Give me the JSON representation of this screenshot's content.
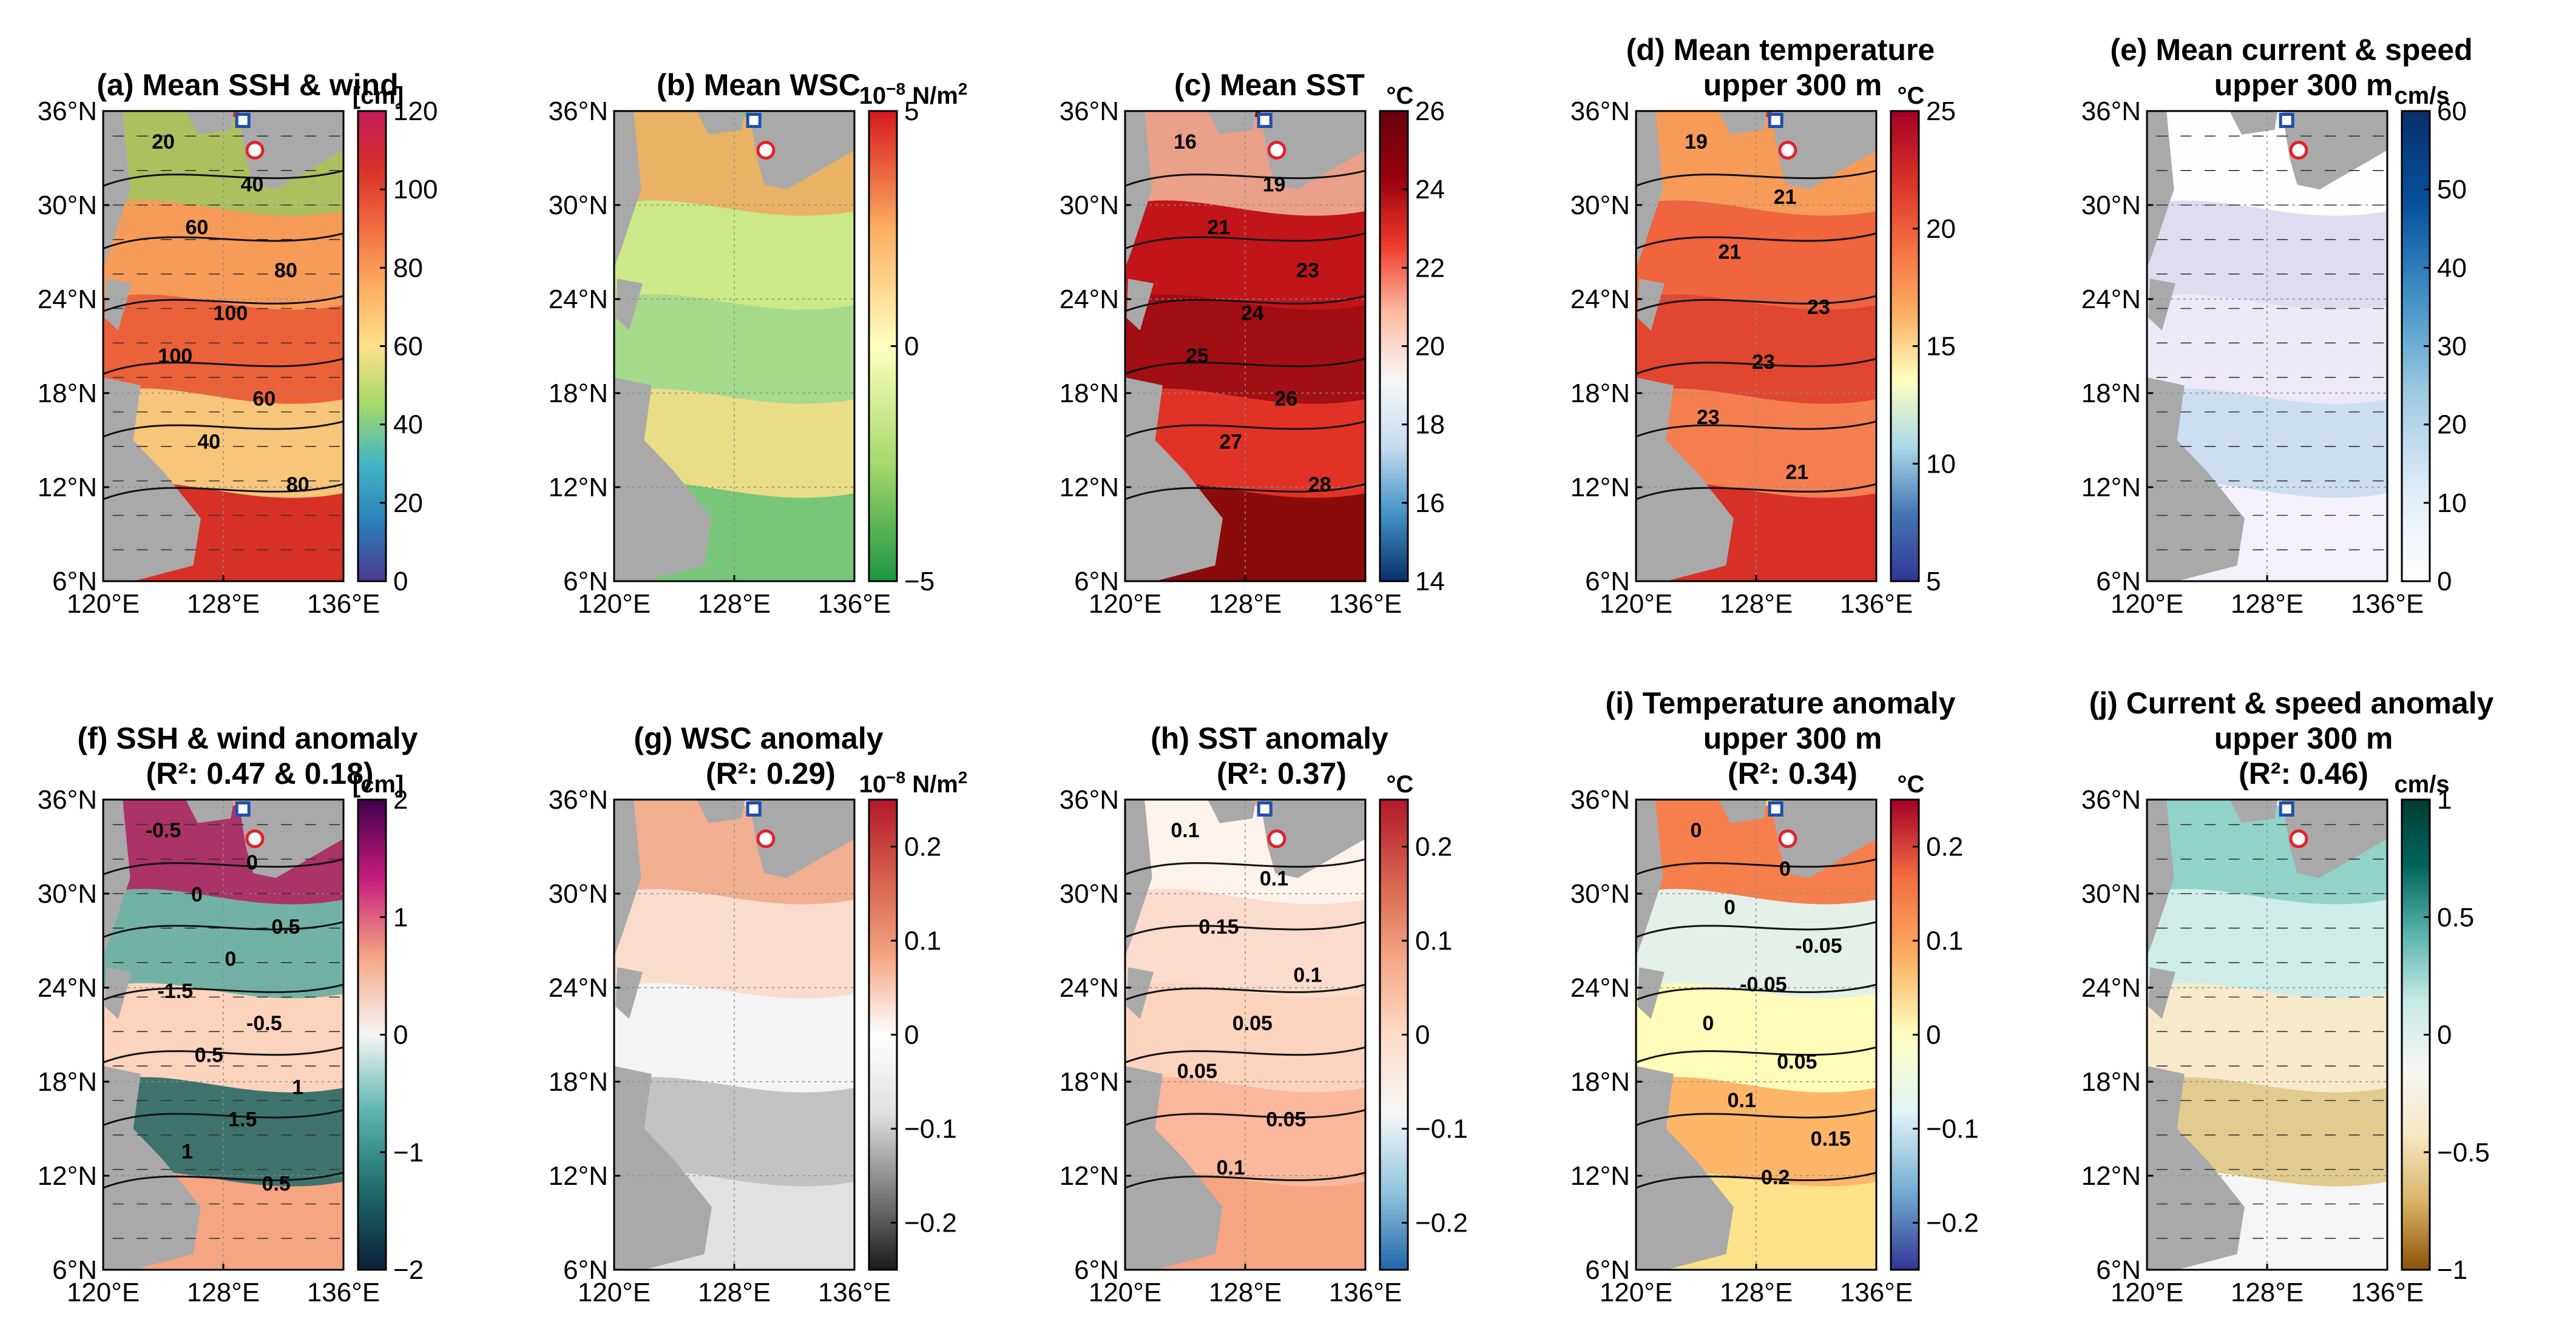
{
  "chart_data": {
    "type": "heatmap",
    "map_extent": {
      "lon": [
        120,
        136
      ],
      "lat": [
        6,
        36
      ]
    },
    "x_ticks": [
      "120°E",
      "128°E",
      "136°E"
    ],
    "y_ticks": [
      "36°N",
      "30°N",
      "24°N",
      "18°N",
      "12°N",
      "6°N"
    ],
    "panels": [
      {
        "id": "a",
        "title_lines": [
          "(a) Mean SSH & wind"
        ],
        "unit": "[cm]",
        "colorbar": {
          "min": 0,
          "max": 120,
          "ticks": [
            "120",
            "100",
            "80",
            "60",
            "40",
            "20",
            "0"
          ],
          "colors": [
            "#4b3a8e",
            "#2c7fb8",
            "#41b6c4",
            "#a6d96a",
            "#fee08b",
            "#fdae61",
            "#f46d43",
            "#d73027",
            "#c51b5a"
          ]
        },
        "map_colors": [
          "#d73027",
          "#ee6a3d",
          "#fdae61",
          "#fee08b",
          "#a6d96a"
        ],
        "contour_labels": [
          "20",
          "40",
          "60",
          "80",
          "100",
          "100",
          "60",
          "40",
          "80"
        ]
      },
      {
        "id": "b",
        "title_lines": [
          "(b) Mean WSC"
        ],
        "unit": "10^-8 N/m^2",
        "colorbar": {
          "min": -5,
          "max": 5,
          "ticks": [
            "5",
            "0",
            "−5"
          ],
          "colors": [
            "#1a9641",
            "#a6d96a",
            "#ffffbf",
            "#fdae61",
            "#d7191c"
          ]
        },
        "map_colors": [
          "#78c679",
          "#addd8e",
          "#d9ef8b",
          "#fee08b",
          "#fdae61"
        ],
        "contour_labels": []
      },
      {
        "id": "c",
        "title_lines": [
          "(c) Mean SST"
        ],
        "unit": "°C",
        "colorbar": {
          "min": 14,
          "max": 26,
          "ticks": [
            "26",
            "24",
            "22",
            "20",
            "18",
            "16",
            "14"
          ],
          "colors": [
            "#08306b",
            "#4292c6",
            "#c6dbef",
            "#f7f7f7",
            "#fcbba1",
            "#ef3b2c",
            "#99000d",
            "#67000d"
          ]
        },
        "map_colors": [
          "#8b0a0a",
          "#a50f15",
          "#cb181d",
          "#ef3b2c",
          "#fcbba1"
        ],
        "contour_labels": [
          "16",
          "19",
          "21",
          "23",
          "24",
          "25",
          "26",
          "27",
          "28"
        ]
      },
      {
        "id": "d",
        "title_lines": [
          "(d) Mean temperature",
          "upper 300 m"
        ],
        "unit": "°C",
        "colorbar": {
          "min": 5,
          "max": 25,
          "ticks": [
            "25",
            "20",
            "15",
            "10",
            "5"
          ],
          "colors": [
            "#313695",
            "#4575b4",
            "#abd9e9",
            "#ffffbf",
            "#fdae61",
            "#f46d43",
            "#d73027",
            "#a50026"
          ]
        },
        "map_colors": [
          "#d73027",
          "#e34a33",
          "#f46d43",
          "#fc8d59",
          "#fdae61"
        ],
        "contour_labels": [
          "19",
          "21",
          "21",
          "23",
          "23",
          "23",
          "21"
        ]
      },
      {
        "id": "e",
        "title_lines": [
          "(e) Mean current & speed",
          "upper 300 m"
        ],
        "unit": "cm/s",
        "colorbar": {
          "min": 0,
          "max": 60,
          "ticks": [
            "60",
            "50",
            "40",
            "30",
            "20",
            "10",
            "0"
          ],
          "colors": [
            "#ffffff",
            "#deebf7",
            "#9ecae1",
            "#4292c6",
            "#08519c",
            "#08306b"
          ]
        },
        "map_colors": [
          "#f4f1fa",
          "#ece7f4",
          "#dcd8ec",
          "#c6dbef",
          "#ffffff"
        ],
        "contour_labels": []
      },
      {
        "id": "f",
        "title_lines": [
          "(f) SSH & wind anomaly",
          "(R²: 0.47 & 0.18)"
        ],
        "unit": "[cm]",
        "colorbar": {
          "min": -2,
          "max": 2,
          "ticks": [
            "2",
            "1",
            "0",
            "−1",
            "−2"
          ],
          "colors": [
            "#0b1f3a",
            "#1d6a6a",
            "#5ab4ac",
            "#f5f5f5",
            "#f4a582",
            "#c51b7d",
            "#40004b"
          ]
        },
        "map_colors": [
          "#f4a582",
          "#fddbc7",
          "#5ab4ac",
          "#1d6a6a",
          "#9e1f63"
        ],
        "contour_labels": [
          "-0.5",
          "0",
          "0",
          "0.5",
          "0",
          "-1.5",
          "-0.5",
          "0.5",
          "1",
          "1.5",
          "1",
          "0.5"
        ]
      },
      {
        "id": "g",
        "title_lines": [
          "(g) WSC anomaly",
          "(R²: 0.29)"
        ],
        "unit": "10^-8 N/m^2",
        "colorbar": {
          "min": -0.25,
          "max": 0.25,
          "ticks": [
            "0.2",
            "0.1",
            "0",
            "−0.1",
            "−0.2"
          ],
          "colors": [
            "#1a1a1a",
            "#7f7f7f",
            "#e0e0e0",
            "#ffffff",
            "#f4a582",
            "#d6604d",
            "#b2182b"
          ]
        },
        "map_colors": [
          "#e0e0e0",
          "#f7f7f7",
          "#fddbc7",
          "#bdbdbd",
          "#f4a582"
        ],
        "contour_labels": []
      },
      {
        "id": "h",
        "title_lines": [
          "(h) SST anomaly",
          "(R²: 0.37)"
        ],
        "unit": "°C",
        "colorbar": {
          "min": -0.25,
          "max": 0.25,
          "ticks": [
            "0.2",
            "0.1",
            "0",
            "−0.1",
            "−0.2"
          ],
          "colors": [
            "#2166ac",
            "#92c5de",
            "#f7f7f7",
            "#fddbc7",
            "#f4a582",
            "#d6604d",
            "#b2182b"
          ]
        },
        "map_colors": [
          "#f4a582",
          "#fddbc7",
          "#fbe4d8",
          "#fcbba1",
          "#ffffff"
        ],
        "contour_labels": [
          "0.1",
          "0.1",
          "0.15",
          "0.1",
          "0.05",
          "0.05",
          "0.05",
          "0.1"
        ]
      },
      {
        "id": "i",
        "title_lines": [
          "(i) Temperature anomaly",
          "upper 300 m",
          "(R²: 0.34)"
        ],
        "unit": "°C",
        "colorbar": {
          "min": -0.25,
          "max": 0.25,
          "ticks": [
            "0.2",
            "0.1",
            "0",
            "−0.1",
            "−0.2"
          ],
          "colors": [
            "#313695",
            "#74add1",
            "#e0f3f8",
            "#ffffbf",
            "#fdae61",
            "#f46d43",
            "#a50026"
          ]
        },
        "map_colors": [
          "#fee08b",
          "#ffffbf",
          "#e0f3f8",
          "#fdae61",
          "#f46d43"
        ],
        "contour_labels": [
          "0",
          "0",
          "0",
          "-0.05",
          "-0.05",
          "0",
          "0.05",
          "0.1",
          "0.15",
          "0.2"
        ]
      },
      {
        "id": "j",
        "title_lines": [
          "(j) Current & speed anomaly",
          "upper 300 m",
          "(R²: 0.46)"
        ],
        "unit": "cm/s",
        "colorbar": {
          "min": -1,
          "max": 1,
          "ticks": [
            "1",
            "0.5",
            "0",
            "−0.5",
            "−1"
          ],
          "colors": [
            "#8c510a",
            "#d8b365",
            "#f6e8c3",
            "#f5f5f5",
            "#c7eae5",
            "#5ab4ac",
            "#01665e",
            "#003c30"
          ]
        },
        "map_colors": [
          "#f5f5f5",
          "#f6e8c3",
          "#c7eae5",
          "#dfc27d",
          "#80cdc1"
        ],
        "contour_labels": []
      }
    ]
  }
}
